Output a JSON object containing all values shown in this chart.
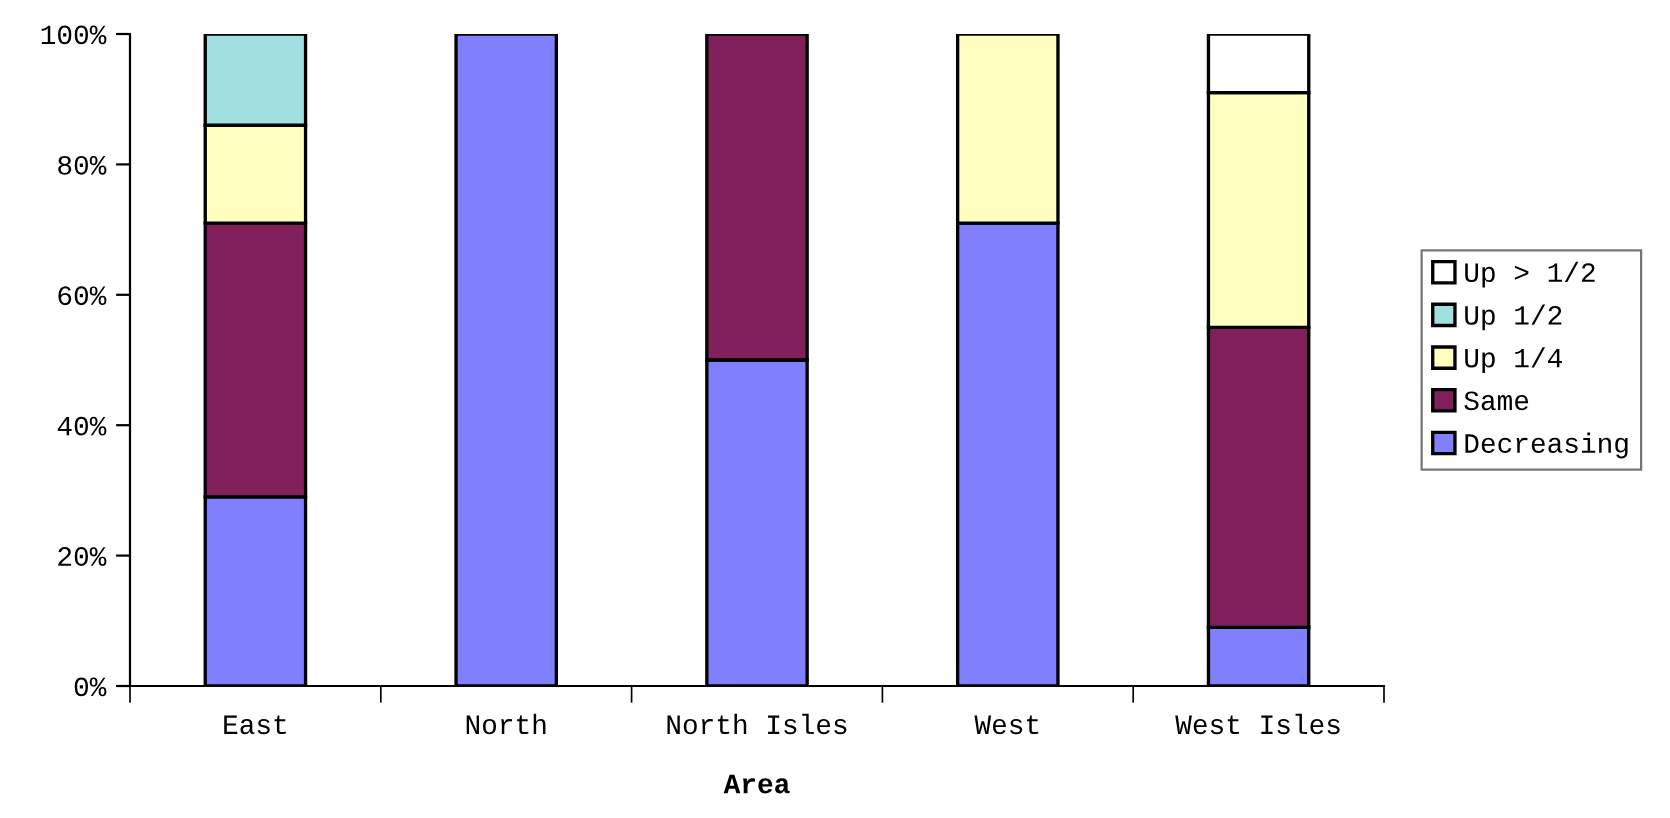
{
  "chart_data": {
    "type": "bar",
    "stacked": true,
    "xlabel": "Area",
    "categories": [
      "East",
      "North",
      "North Isles",
      "West",
      "West Isles"
    ],
    "series": [
      {
        "name": "Decreasing",
        "color": "#8080ff",
        "values": [
          29,
          100,
          50,
          71,
          9
        ]
      },
      {
        "name": "Same",
        "color": "#801f5a",
        "values": [
          42,
          null,
          50,
          null,
          46
        ]
      },
      {
        "name": "Up 1/4",
        "color": "#ffffc0",
        "values": [
          15,
          null,
          null,
          29,
          36
        ]
      },
      {
        "name": "Up 1/2",
        "color": "#a0e0e0",
        "values": [
          14,
          null,
          null,
          null,
          null
        ]
      },
      {
        "name": "Up > 1/2",
        "color": "#ffffff",
        "values": [
          null,
          null,
          null,
          null,
          9
        ]
      }
    ],
    "ylim": [
      0,
      100
    ],
    "yticks": [
      {
        "value": 0,
        "label": "0%"
      },
      {
        "value": 20,
        "label": "20%"
      },
      {
        "value": 40,
        "label": "40%"
      },
      {
        "value": 60,
        "label": "60%"
      },
      {
        "value": 80,
        "label": "80%"
      },
      {
        "value": 100,
        "label": "100%"
      }
    ],
    "grid": false,
    "legend": "right"
  }
}
